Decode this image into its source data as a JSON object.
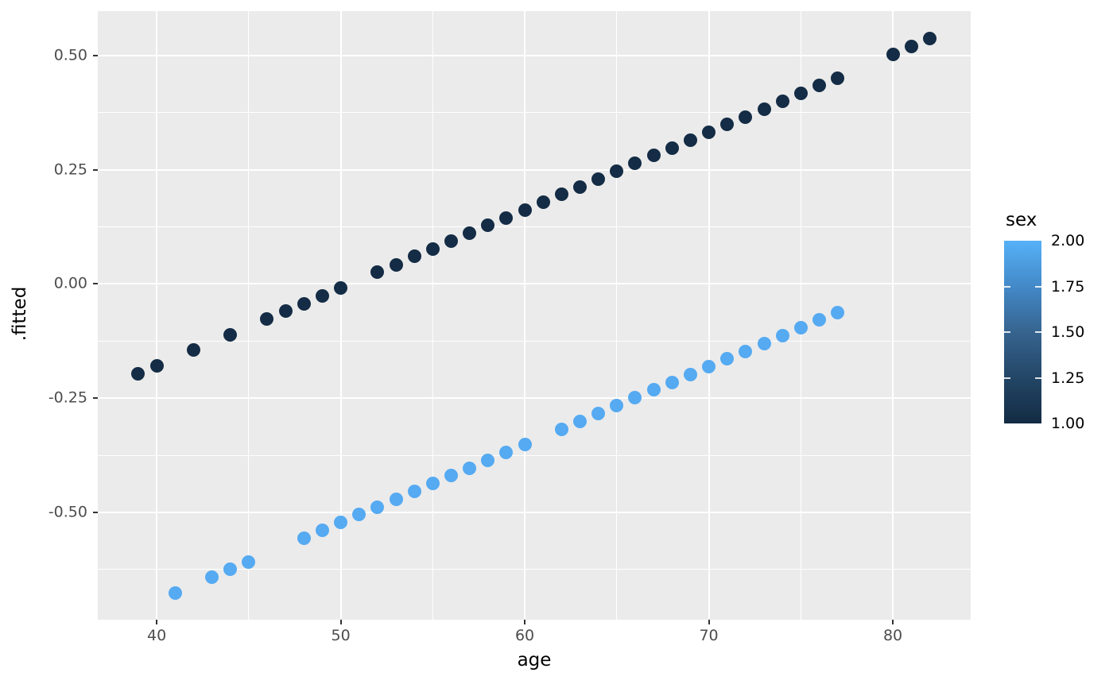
{
  "colors": {
    "panel_background": "#EBEBEB",
    "grid": "#FFFFFF",
    "tick_label": "#4D4D4D",
    "axis_title": "#000000",
    "tick_mark": "#333333"
  },
  "chart_data": {
    "type": "scatter",
    "title": "",
    "xlabel": "age",
    "ylabel": ".fitted",
    "grid": true,
    "x_axis": {
      "lim": [
        36.8,
        84.23
      ],
      "ticks": [
        {
          "label": "40",
          "value": 40
        },
        {
          "label": "50",
          "value": 50
        },
        {
          "label": "60",
          "value": 60
        },
        {
          "label": "70",
          "value": 70
        },
        {
          "label": "80",
          "value": 80
        }
      ],
      "minor": [
        45,
        55,
        65,
        75
      ]
    },
    "y_axis": {
      "lim": [
        -0.7348,
        0.5974
      ],
      "ticks": [
        {
          "label": "0.50",
          "value": 0.5
        },
        {
          "label": "0.25",
          "value": 0.25
        },
        {
          "label": "0.00",
          "value": 0.0
        },
        {
          "label": "-0.25",
          "value": -0.25
        },
        {
          "label": "-0.50",
          "value": -0.5
        }
      ],
      "minor": [
        0.375,
        0.125,
        -0.125,
        -0.375,
        -0.625
      ]
    },
    "series": [
      {
        "name": "sex = 1",
        "color": "#142C45",
        "points": [
          [
            39,
            -0.196
          ],
          [
            40,
            -0.179
          ],
          [
            42,
            -0.145
          ],
          [
            44,
            -0.111
          ],
          [
            46,
            -0.077
          ],
          [
            47,
            -0.06
          ],
          [
            48,
            -0.043
          ],
          [
            49,
            -0.026
          ],
          [
            50,
            -0.009
          ],
          [
            52,
            0.026
          ],
          [
            53,
            0.042
          ],
          [
            54,
            0.06
          ],
          [
            55,
            0.077
          ],
          [
            56,
            0.094
          ],
          [
            57,
            0.111
          ],
          [
            58,
            0.128
          ],
          [
            59,
            0.145
          ],
          [
            60,
            0.162
          ],
          [
            61,
            0.179
          ],
          [
            62,
            0.196
          ],
          [
            63,
            0.213
          ],
          [
            64,
            0.23
          ],
          [
            65,
            0.247
          ],
          [
            66,
            0.264
          ],
          [
            67,
            0.281
          ],
          [
            68,
            0.298
          ],
          [
            69,
            0.315
          ],
          [
            70,
            0.332
          ],
          [
            71,
            0.349
          ],
          [
            72,
            0.366
          ],
          [
            73,
            0.383
          ],
          [
            74,
            0.4
          ],
          [
            75,
            0.417
          ],
          [
            76,
            0.434
          ],
          [
            77,
            0.451
          ],
          [
            80,
            0.503
          ],
          [
            81,
            0.52
          ],
          [
            82,
            0.537
          ]
        ]
      },
      {
        "name": "sex = 2",
        "color": "#55AAF2",
        "points": [
          [
            41,
            -0.676
          ],
          [
            43,
            -0.642
          ],
          [
            44,
            -0.625
          ],
          [
            45,
            -0.608
          ],
          [
            48,
            -0.557
          ],
          [
            49,
            -0.54
          ],
          [
            50,
            -0.522
          ],
          [
            51,
            -0.505
          ],
          [
            52,
            -0.488
          ],
          [
            53,
            -0.471
          ],
          [
            54,
            -0.454
          ],
          [
            55,
            -0.437
          ],
          [
            56,
            -0.42
          ],
          [
            57,
            -0.403
          ],
          [
            58,
            -0.386
          ],
          [
            59,
            -0.369
          ],
          [
            60,
            -0.352
          ],
          [
            62,
            -0.318
          ],
          [
            63,
            -0.301
          ],
          [
            64,
            -0.284
          ],
          [
            65,
            -0.266
          ],
          [
            66,
            -0.249
          ],
          [
            67,
            -0.232
          ],
          [
            68,
            -0.215
          ],
          [
            69,
            -0.198
          ],
          [
            70,
            -0.181
          ],
          [
            71,
            -0.164
          ],
          [
            72,
            -0.147
          ],
          [
            73,
            -0.13
          ],
          [
            74,
            -0.113
          ],
          [
            75,
            -0.096
          ],
          [
            76,
            -0.079
          ],
          [
            77,
            -0.062
          ]
        ]
      }
    ],
    "legend": {
      "title": "sex",
      "type": "colorbar",
      "position": "right",
      "limits": [
        1.0,
        2.0
      ],
      "labels": [
        {
          "label": "2.00",
          "value": 2.0
        },
        {
          "label": "1.75",
          "value": 1.75
        },
        {
          "label": "1.50",
          "value": 1.5
        },
        {
          "label": "1.25",
          "value": 1.25
        },
        {
          "label": "1.00",
          "value": 1.0
        }
      ],
      "bar_ticks": [
        1.75,
        1.5,
        1.25
      ],
      "gradient_low": "#132B43",
      "gradient_high": "#56B1F7",
      "gradient_stops_top_to_bottom": [
        "#56B1F7",
        "#4389C8",
        "#36648F",
        "#234666",
        "#132B43"
      ]
    }
  }
}
